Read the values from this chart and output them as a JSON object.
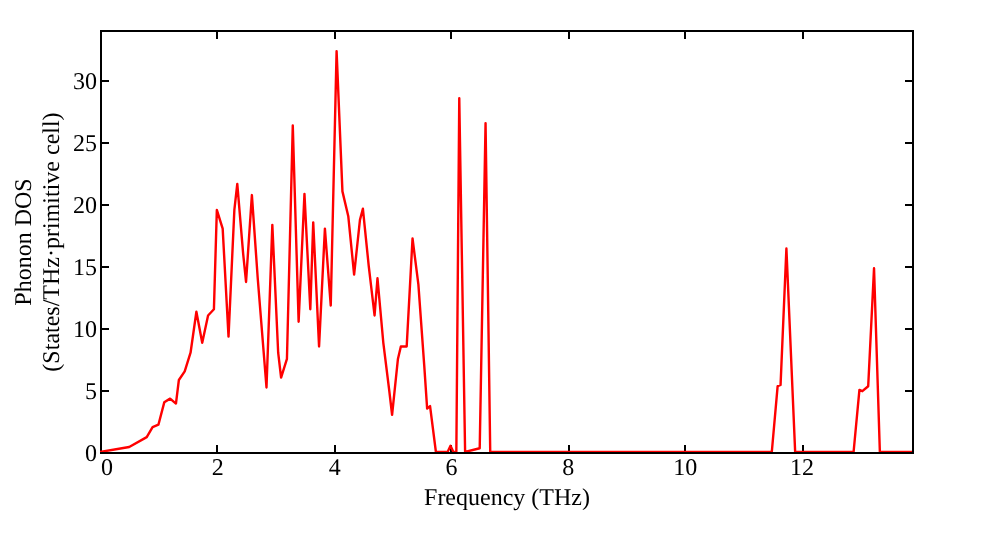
{
  "chart_data": {
    "type": "line",
    "xlabel": "Frequency (THz)",
    "ylabel": "Phonon DOS\n(States/THz·primitive cell)",
    "xlim": [
      0,
      13.9
    ],
    "ylim": [
      0,
      34
    ],
    "xticks": [
      0,
      2,
      4,
      6,
      8,
      10,
      12
    ],
    "yticks": [
      0,
      5,
      10,
      15,
      20,
      25,
      30
    ],
    "grid": false,
    "series": [
      {
        "color": "#ff0000",
        "x": [
          0,
          0.5,
          0.8,
          0.9,
          1.0,
          1.1,
          1.2,
          1.3,
          1.35,
          1.45,
          1.55,
          1.65,
          1.75,
          1.85,
          1.95,
          2.0,
          2.1,
          2.2,
          2.3,
          2.35,
          2.45,
          2.5,
          2.6,
          2.7,
          2.85,
          2.95,
          3.05,
          3.1,
          3.2,
          3.3,
          3.4,
          3.5,
          3.6,
          3.65,
          3.75,
          3.85,
          3.95,
          4.05,
          4.15,
          4.25,
          4.35,
          4.45,
          4.5,
          4.6,
          4.7,
          4.75,
          4.85,
          4.95,
          5.0,
          5.1,
          5.15,
          5.25,
          5.35,
          5.45,
          5.55,
          5.6,
          5.65,
          5.75,
          5.95,
          6.0,
          6.05,
          6.1,
          6.15,
          6.25,
          6.5,
          6.6,
          6.68,
          11.5,
          11.6,
          11.65,
          11.75,
          11.9,
          12.9,
          13.0,
          13.05,
          13.15,
          13.25,
          13.35,
          13.9
        ],
        "values": [
          0,
          0.4,
          1.2,
          2,
          2.2,
          4,
          4.3,
          3.9,
          5.8,
          6.5,
          8,
          11.3,
          8.8,
          11,
          11.5,
          19.5,
          18,
          9.3,
          19.5,
          21.6,
          16,
          13.7,
          20.7,
          14,
          5.2,
          18.3,
          8,
          6,
          7.5,
          26.3,
          10.5,
          20.8,
          11.5,
          18.5,
          8.5,
          18,
          11.8,
          32.3,
          21,
          19,
          14.3,
          18.7,
          19.6,
          15,
          11,
          14,
          8.8,
          5,
          3,
          7.5,
          8.5,
          8.5,
          17.2,
          13.5,
          7,
          3.5,
          3.7,
          0,
          0,
          0.5,
          0,
          0,
          28.5,
          0,
          0.3,
          26.5,
          0,
          0,
          5.3,
          5.4,
          16.4,
          0,
          0,
          5,
          4.9,
          5.3,
          14.8,
          0,
          0
        ]
      }
    ]
  }
}
